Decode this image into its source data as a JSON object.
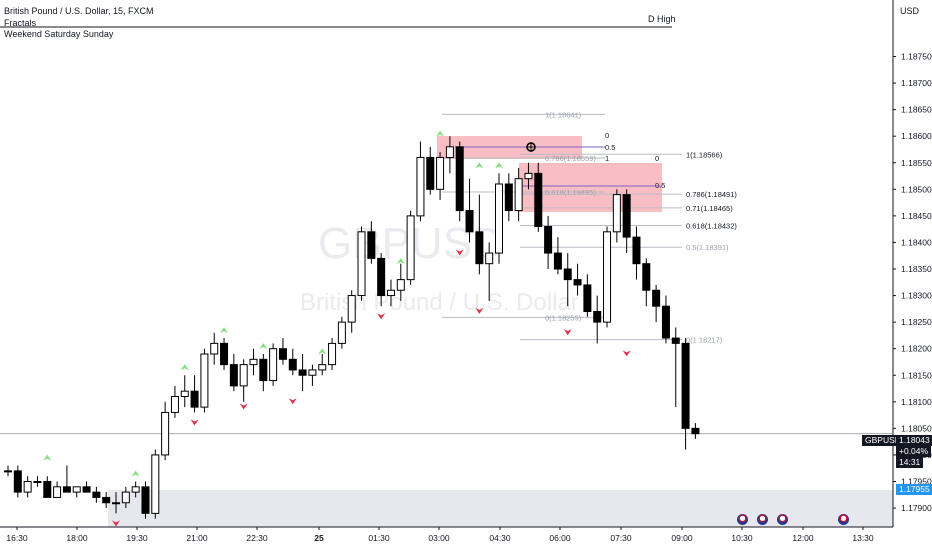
{
  "header": {
    "title": "British Pound / U.S. Dollar, 15, FXCM",
    "indicators": [
      "Fractals",
      "Weekend Saturday Sunday"
    ],
    "d_high_label": "D High",
    "currency": "USD",
    "watermark_symbol": "GBPUSD",
    "watermark_name": "British Pound / U.S. Dollar"
  },
  "price_tag": {
    "symbol": "GBPUSD",
    "price": "1.18043",
    "change": "+0.04%",
    "countdown": "14:31"
  },
  "low_tag": "1.17955",
  "chart_data": {
    "type": "candlestick",
    "y_range": [
      1.1787,
      1.1883
    ],
    "y_ticks": [
      "1.18750",
      "1.18700",
      "1.18650",
      "1.18600",
      "1.18550",
      "1.18500",
      "1.18450",
      "1.18400",
      "1.18350",
      "1.18300",
      "1.18250",
      "1.18200",
      "1.18150",
      "1.18100",
      "1.18050",
      "1.18000",
      "1.17950",
      "1.17900"
    ],
    "x_ticks": [
      "16:30",
      "18:00",
      "19:30",
      "21:00",
      "22:30",
      "25",
      "01:30",
      "03:00",
      "04:30",
      "06:00",
      "07:30",
      "09:00",
      "10:30",
      "12:00",
      "13:30"
    ],
    "candles": [
      [
        1.1797,
        1.1798,
        1.1796,
        1.1797
      ],
      [
        1.1797,
        1.1798,
        1.1792,
        1.1793
      ],
      [
        1.1793,
        1.1796,
        1.1792,
        1.1795
      ],
      [
        1.1795,
        1.1796,
        1.1794,
        1.1795
      ],
      [
        1.1795,
        1.1796,
        1.1792,
        1.1792
      ],
      [
        1.1792,
        1.1795,
        1.1792,
        1.1794
      ],
      [
        1.1794,
        1.1798,
        1.1793,
        1.1793
      ],
      [
        1.1793,
        1.1794,
        1.1792,
        1.1794
      ],
      [
        1.1794,
        1.1795,
        1.1793,
        1.1793
      ],
      [
        1.1793,
        1.1794,
        1.1791,
        1.1792
      ],
      [
        1.1792,
        1.1793,
        1.179,
        1.1791
      ],
      [
        1.1791,
        1.1793,
        1.1789,
        1.1791
      ],
      [
        1.1791,
        1.1794,
        1.179,
        1.1793
      ],
      [
        1.1793,
        1.1795,
        1.1792,
        1.1794
      ],
      [
        1.1794,
        1.1795,
        1.1788,
        1.1789
      ],
      [
        1.1789,
        1.1801,
        1.1788,
        1.18
      ],
      [
        1.18,
        1.181,
        1.1799,
        1.1808
      ],
      [
        1.1808,
        1.1813,
        1.1807,
        1.1811
      ],
      [
        1.1811,
        1.1815,
        1.1809,
        1.1812
      ],
      [
        1.1812,
        1.1815,
        1.1808,
        1.1809
      ],
      [
        1.1809,
        1.182,
        1.1808,
        1.1819
      ],
      [
        1.1819,
        1.1823,
        1.1817,
        1.1821
      ],
      [
        1.1821,
        1.1822,
        1.1816,
        1.1817
      ],
      [
        1.1817,
        1.1819,
        1.1812,
        1.1813
      ],
      [
        1.1813,
        1.1818,
        1.181,
        1.1817
      ],
      [
        1.1817,
        1.182,
        1.1815,
        1.1818
      ],
      [
        1.1818,
        1.1819,
        1.1812,
        1.1814
      ],
      [
        1.1814,
        1.1821,
        1.1813,
        1.182
      ],
      [
        1.182,
        1.1822,
        1.1817,
        1.1818
      ],
      [
        1.1818,
        1.182,
        1.1815,
        1.1816
      ],
      [
        1.1816,
        1.1819,
        1.1812,
        1.1815
      ],
      [
        1.1815,
        1.1817,
        1.1813,
        1.1816
      ],
      [
        1.1816,
        1.1819,
        1.1815,
        1.1817
      ],
      [
        1.1817,
        1.1822,
        1.1816,
        1.1821
      ],
      [
        1.1821,
        1.1826,
        1.182,
        1.1825
      ],
      [
        1.1825,
        1.1831,
        1.1823,
        1.183
      ],
      [
        1.183,
        1.1843,
        1.1829,
        1.1842
      ],
      [
        1.1842,
        1.1844,
        1.1836,
        1.1837
      ],
      [
        1.1837,
        1.1838,
        1.1828,
        1.183
      ],
      [
        1.183,
        1.1833,
        1.1828,
        1.1831
      ],
      [
        1.1831,
        1.1836,
        1.1829,
        1.1833
      ],
      [
        1.1833,
        1.1846,
        1.1832,
        1.1845
      ],
      [
        1.1845,
        1.1859,
        1.1844,
        1.1856
      ],
      [
        1.1856,
        1.1858,
        1.1849,
        1.185
      ],
      [
        1.185,
        1.1857,
        1.1848,
        1.1856
      ],
      [
        1.1856,
        1.186,
        1.1853,
        1.1858
      ],
      [
        1.1858,
        1.1859,
        1.1844,
        1.1846
      ],
      [
        1.1846,
        1.1852,
        1.184,
        1.1842
      ],
      [
        1.1842,
        1.1849,
        1.1834,
        1.1836
      ],
      [
        1.1836,
        1.184,
        1.1829,
        1.1838
      ],
      [
        1.1838,
        1.1853,
        1.1836,
        1.1851
      ],
      [
        1.1851,
        1.1853,
        1.1844,
        1.1846
      ],
      [
        1.1846,
        1.1854,
        1.1844,
        1.1852
      ],
      [
        1.1852,
        1.1855,
        1.185,
        1.1853
      ],
      [
        1.1853,
        1.1855,
        1.1842,
        1.1843
      ],
      [
        1.1843,
        1.1845,
        1.1835,
        1.1838
      ],
      [
        1.1838,
        1.1841,
        1.1834,
        1.1835
      ],
      [
        1.1835,
        1.1838,
        1.1828,
        1.1833
      ],
      [
        1.1833,
        1.1836,
        1.183,
        1.1832
      ],
      [
        1.1832,
        1.1834,
        1.1826,
        1.1827
      ],
      [
        1.1827,
        1.183,
        1.1821,
        1.1825
      ],
      [
        1.1825,
        1.1843,
        1.1824,
        1.1842
      ],
      [
        1.1842,
        1.185,
        1.184,
        1.1849
      ],
      [
        1.1849,
        1.185,
        1.1838,
        1.1841
      ],
      [
        1.1841,
        1.1843,
        1.1833,
        1.1836
      ],
      [
        1.1836,
        1.1837,
        1.1828,
        1.1831
      ],
      [
        1.1831,
        1.1832,
        1.1825,
        1.1828
      ],
      [
        1.1828,
        1.183,
        1.1821,
        1.1822
      ],
      [
        1.1822,
        1.1824,
        1.1809,
        1.1821
      ],
      [
        1.1821,
        1.1822,
        1.1801,
        1.1805
      ],
      [
        1.1805,
        1.1806,
        1.1803,
        1.1804
      ]
    ],
    "fractals_up": [
      [
        4,
        1.1798
      ],
      [
        13,
        1.1795
      ],
      [
        18,
        1.1815
      ],
      [
        22,
        1.1822
      ],
      [
        26,
        1.1819
      ],
      [
        32,
        1.1818
      ],
      [
        40,
        1.1835
      ],
      [
        44,
        1.1859
      ],
      [
        48,
        1.1853
      ],
      [
        50,
        1.1853
      ]
    ],
    "fractals_down": [
      [
        11,
        1.1789
      ],
      [
        19,
        1.1808
      ],
      [
        24,
        1.1811
      ],
      [
        29,
        1.1812
      ],
      [
        38,
        1.1828
      ],
      [
        46,
        1.184
      ],
      [
        48,
        1.1829
      ],
      [
        57,
        1.1825
      ],
      [
        63,
        1.1821
      ]
    ],
    "fib_levels_a": [
      "1(1.18641)",
      "0.786(1.18559)",
      "0.618(1.18495)",
      "0(1.18259)"
    ],
    "fib_levels_b": [
      "1(1.18566)",
      "0.786(1.18491)",
      "0.71(1.18465)",
      "0.618(1.18432)",
      "0.5(1.18391)",
      "0(1.18217)"
    ],
    "zone_labels": [
      "0",
      "0.5",
      "1",
      "0",
      "0.5"
    ]
  },
  "colors": {
    "up": "#ffffff",
    "down": "#000000",
    "fractal_up": "#7ee07e",
    "fractal_down": "#e0314a",
    "zone": "#f7a8b0",
    "weekend": "#e6e8ee",
    "price_tag": "#131722",
    "low_tag": "#2196f3"
  }
}
